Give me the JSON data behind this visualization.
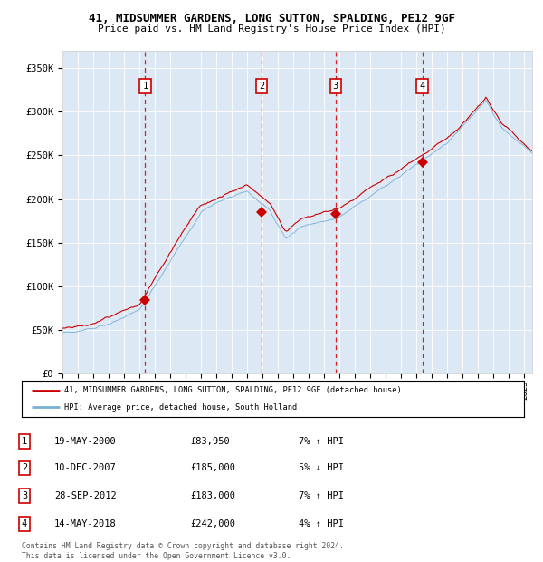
{
  "title": "41, MIDSUMMER GARDENS, LONG SUTTON, SPALDING, PE12 9GF",
  "subtitle": "Price paid vs. HM Land Registry's House Price Index (HPI)",
  "plot_bg_color": "#dce9f5",
  "hpi_color": "#7ab0d4",
  "price_color": "#cc0000",
  "marker_color": "#cc0000",
  "vline_color": "#cc0000",
  "ylim": [
    0,
    370000
  ],
  "xlim_start": 1995.0,
  "xlim_end": 2025.5,
  "yticks": [
    0,
    50000,
    100000,
    150000,
    200000,
    250000,
    300000,
    350000
  ],
  "ytick_labels": [
    "£0",
    "£50K",
    "£100K",
    "£150K",
    "£200K",
    "£250K",
    "£300K",
    "£350K"
  ],
  "sale_dates_decimal": [
    2000.37,
    2007.94,
    2012.74,
    2018.37
  ],
  "sale_prices": [
    83950,
    185000,
    183000,
    242000
  ],
  "sale_labels": [
    "1",
    "2",
    "3",
    "4"
  ],
  "legend_line1": "41, MIDSUMMER GARDENS, LONG SUTTON, SPALDING, PE12 9GF (detached house)",
  "legend_line2": "HPI: Average price, detached house, South Holland",
  "table_rows": [
    [
      "1",
      "19-MAY-2000",
      "£83,950",
      "7% ↑ HPI"
    ],
    [
      "2",
      "10-DEC-2007",
      "£185,000",
      "5% ↓ HPI"
    ],
    [
      "3",
      "28-SEP-2012",
      "£183,000",
      "7% ↑ HPI"
    ],
    [
      "4",
      "14-MAY-2018",
      "£242,000",
      "4% ↑ HPI"
    ]
  ],
  "footer": "Contains HM Land Registry data © Crown copyright and database right 2024.\nThis data is licensed under the Open Government Licence v3.0."
}
